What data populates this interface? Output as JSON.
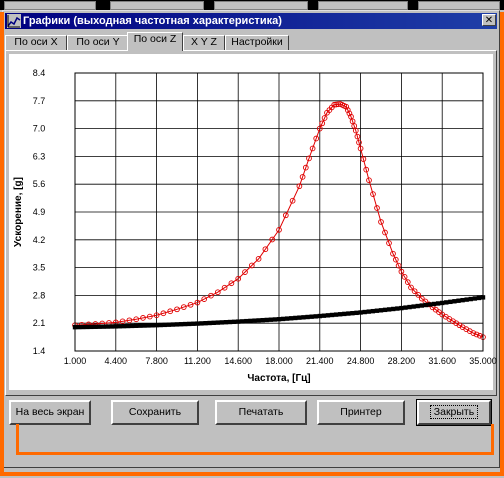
{
  "window": {
    "title": "Графики (выходная частотная характеристика)",
    "close_glyph": "✕",
    "icon": "chart-icon"
  },
  "tabs": [
    {
      "label": "По оси X",
      "active": false
    },
    {
      "label": "По оси Y",
      "active": false
    },
    {
      "label": "По оси Z",
      "active": true
    },
    {
      "label": "X Y Z",
      "active": false
    },
    {
      "label": "Настройки",
      "active": false
    }
  ],
  "buttons": {
    "fullscreen": "На весь экран",
    "save": "Сохранить",
    "print": "Печатать",
    "printer": "Принтер",
    "close": "Закрыть"
  },
  "colors": {
    "accent_frame": "#ff6a00",
    "title_bar": "#000080",
    "series_red": "#e00000",
    "series_black": "#000000"
  },
  "chart_data": {
    "type": "line",
    "xlabel": "Частота, [Гц]",
    "ylabel": "Ускорение, [g]",
    "xlim": [
      1.0,
      35.0
    ],
    "ylim": [
      1.4,
      8.4
    ],
    "x_ticks": [
      "1.000",
      "4.400",
      "7.800",
      "11.200",
      "14.600",
      "18.000",
      "21.400",
      "24.800",
      "28.200",
      "31.600",
      "35.000"
    ],
    "y_ticks": [
      "1.4",
      "2.1",
      "2.8",
      "3.5",
      "4.2",
      "4.9",
      "5.6",
      "6.3",
      "7.0",
      "7.7",
      "8.4"
    ],
    "grid": true,
    "series": [
      {
        "color": "#e00000",
        "marker": "circle",
        "x": [
          1.0,
          2.7,
          4.4,
          6.1,
          7.8,
          9.5,
          11.2,
          12.9,
          14.6,
          16.3,
          18.0,
          19.7,
          20.5,
          21.4,
          22.0,
          22.6,
          23.1,
          23.6,
          24.0,
          24.4,
          24.8,
          25.5,
          26.5,
          27.5,
          28.2,
          29.0,
          29.9,
          30.8,
          31.6,
          32.5,
          33.3,
          34.2,
          35.0
        ],
        "y": [
          2.05,
          2.08,
          2.12,
          2.2,
          2.3,
          2.45,
          2.62,
          2.88,
          3.22,
          3.72,
          4.45,
          5.55,
          6.25,
          7.0,
          7.4,
          7.6,
          7.62,
          7.55,
          7.3,
          6.95,
          6.5,
          5.7,
          4.65,
          3.85,
          3.4,
          3.0,
          2.72,
          2.5,
          2.32,
          2.15,
          2.0,
          1.85,
          1.75
        ]
      },
      {
        "color": "#000000",
        "marker": "square",
        "x": [
          1.0,
          4.4,
          7.8,
          11.2,
          14.6,
          18.0,
          21.4,
          24.8,
          28.2,
          31.6,
          35.0
        ],
        "y": [
          2.0,
          2.02,
          2.05,
          2.09,
          2.14,
          2.2,
          2.28,
          2.37,
          2.48,
          2.61,
          2.75
        ]
      }
    ]
  }
}
